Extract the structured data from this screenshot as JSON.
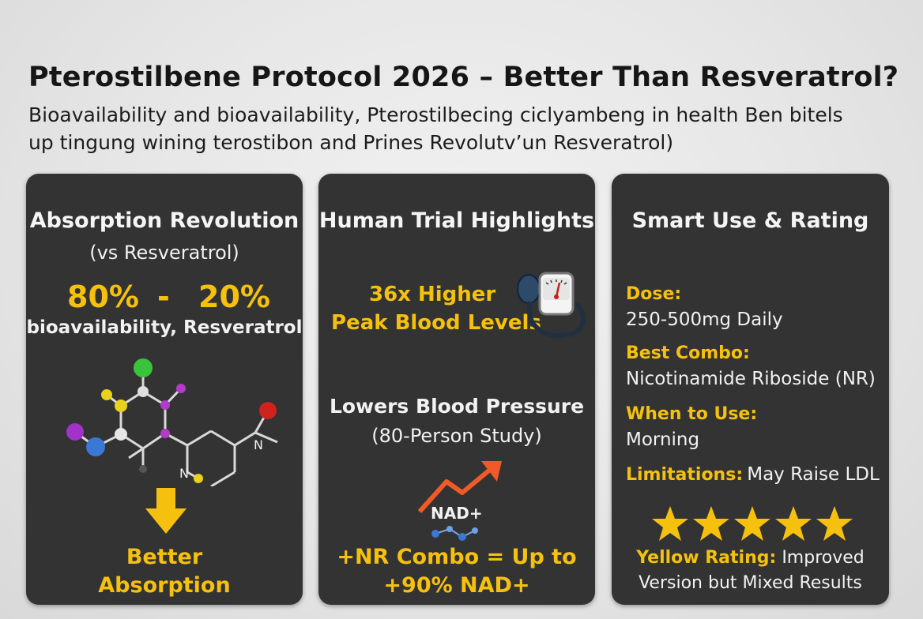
{
  "header": {
    "title": "Pterostilbene Protocol 2026 – Better Than Resveratrol?",
    "subtitle_line1": "Bioavailability and bioavailability,  Pterostilbecing ciclyambeng in health Ben bitels",
    "subtitle_line2": "up tingung wining terostibon and Prines Revolutv’un Resveratrol)"
  },
  "card1": {
    "heading": "Absorption Revolution",
    "subheading": "(vs Resveratrol)",
    "stat_left": "80%",
    "stat_dash": "-",
    "stat_right": "20%",
    "stat_caption": "bioavailability, Resveratrol",
    "molecule_label_n1": "N",
    "molecule_label_n2": "N",
    "footer_line1": "Better",
    "footer_line2": "Absorption",
    "icons": [
      "molecule-icon",
      "arrow-down-icon"
    ]
  },
  "card2": {
    "heading": "Human Trial Highlights",
    "highlight_line1": "36x Higher",
    "highlight_line2": "Peak Blood Levels",
    "bp_heading": "Lowers Blood Pressure",
    "bp_sub": "(80-Person Study)",
    "nad_label": "NAD+",
    "footer_line1": "+NR Combo = Up to",
    "footer_line2": "+90% NAD+",
    "icons": [
      "blood-pressure-gauge-icon",
      "trend-up-arrow-icon"
    ]
  },
  "card3": {
    "heading": "Smart Use & Rating",
    "dose_label": "Dose:",
    "dose_value": "250-500mg Daily",
    "combo_label": "Best Combo:",
    "combo_value": "Nicotinamide Riboside (NR)",
    "when_label": "When to Use:",
    "when_value": "Morning",
    "limits_label": "Limitations:",
    "limits_value": "May Raise LDL",
    "rating_stars": 5,
    "rating_label": "Yellow Rating:",
    "rating_value_line1": "Improved",
    "rating_value_line2": "Version but Mixed Results"
  },
  "colors": {
    "card_bg": "#333333",
    "accent_yellow": "#f6c10e",
    "arrow_orange": "#ef5a28",
    "page_bg": "#e6e6e6"
  }
}
